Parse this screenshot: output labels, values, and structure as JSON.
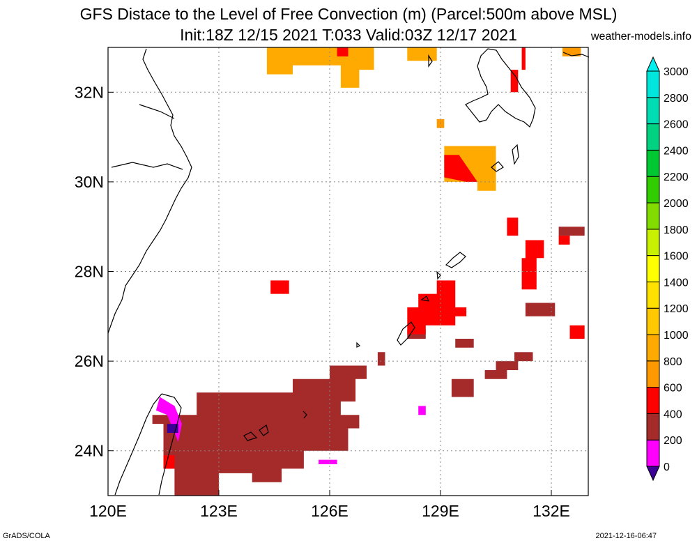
{
  "title_line1": "GFS Distace to the Level of Free Convection (m) (Parcel:500m above MSL)",
  "title_line2": "Init:18Z 12/15 2021 T:033 Valid:03Z 12/17 2021",
  "credit": "weather-models.info",
  "footer_left": "GrADS/COLA",
  "footer_right": "2021-12-16-06:47",
  "map": {
    "lon_range": [
      120,
      133
    ],
    "lat_range": [
      23,
      33
    ],
    "lon_ticks": [
      "120E",
      "123E",
      "126E",
      "129E",
      "132E"
    ],
    "lat_ticks": [
      "24N",
      "26N",
      "28N",
      "30N",
      "32N"
    ]
  },
  "colorbar": {
    "labels": [
      "0",
      "200",
      "400",
      "600",
      "800",
      "1000",
      "1200",
      "1400",
      "1600",
      "1800",
      "2000",
      "2200",
      "2400",
      "2600",
      "2800",
      "3000"
    ],
    "colors": [
      "#3c0096",
      "#ff00ff",
      "#a52a2a",
      "#ff0000",
      "#ff9900",
      "#ffaa00",
      "#ffc800",
      "#ffe100",
      "#ffff00",
      "#c8f000",
      "#82dc00",
      "#32cd00",
      "#00c832",
      "#00d282",
      "#00dcb4",
      "#00e6dc",
      "#00f0f0"
    ]
  },
  "fields": [
    {
      "name": "brown-south",
      "color": "#a52a2a",
      "points": [
        [
          121.2,
          24.8
        ],
        [
          122.4,
          24.8
        ],
        [
          122.4,
          25.3
        ],
        [
          123.3,
          25.3
        ],
        [
          125.0,
          25.3
        ],
        [
          125.0,
          25.6
        ],
        [
          126.0,
          25.6
        ],
        [
          126.0,
          25.9
        ],
        [
          127.0,
          25.9
        ],
        [
          127.0,
          25.6
        ],
        [
          126.7,
          25.6
        ],
        [
          126.7,
          25.1
        ],
        [
          126.3,
          25.1
        ],
        [
          126.3,
          24.8
        ],
        [
          126.8,
          24.8
        ],
        [
          126.8,
          24.5
        ],
        [
          126.5,
          24.5
        ],
        [
          126.5,
          24.0
        ],
        [
          125.3,
          24.0
        ],
        [
          125.3,
          23.6
        ],
        [
          124.7,
          23.6
        ],
        [
          124.7,
          23.3
        ],
        [
          123.9,
          23.3
        ],
        [
          123.9,
          23.5
        ],
        [
          123.0,
          23.5
        ],
        [
          123.0,
          23.0
        ],
        [
          121.8,
          23.0
        ],
        [
          121.8,
          23.6
        ],
        [
          121.5,
          23.6
        ],
        [
          121.5,
          24.6
        ],
        [
          121.2,
          24.6
        ]
      ]
    },
    {
      "name": "red-south-small",
      "color": "#ff0000",
      "points": [
        [
          121.5,
          23.6
        ],
        [
          121.8,
          23.6
        ],
        [
          121.8,
          23.9
        ],
        [
          121.5,
          23.9
        ]
      ]
    },
    {
      "name": "magenta-taiwan",
      "color": "#ff00ff",
      "points": [
        [
          121.4,
          25.2
        ],
        [
          121.8,
          25.0
        ],
        [
          122.0,
          24.6
        ],
        [
          121.9,
          24.2
        ],
        [
          121.6,
          24.8
        ],
        [
          121.3,
          24.9
        ]
      ]
    },
    {
      "name": "purple-taiwan",
      "color": "#3c0096",
      "points": [
        [
          121.6,
          24.6
        ],
        [
          121.9,
          24.6
        ],
        [
          121.9,
          24.4
        ],
        [
          121.6,
          24.4
        ]
      ]
    },
    {
      "name": "magenta-south",
      "color": "#ff00ff",
      "points": [
        [
          125.7,
          23.8
        ],
        [
          126.2,
          23.8
        ],
        [
          126.2,
          23.7
        ],
        [
          125.7,
          23.7
        ]
      ]
    },
    {
      "name": "brown-mid",
      "color": "#a52a2a",
      "points": [
        [
          130.2,
          25.6
        ],
        [
          130.8,
          25.6
        ],
        [
          130.8,
          25.8
        ],
        [
          131.1,
          25.8
        ],
        [
          131.1,
          26.0
        ],
        [
          131.5,
          26.0
        ],
        [
          131.5,
          26.2
        ],
        [
          131.0,
          26.2
        ],
        [
          131.0,
          26.0
        ],
        [
          130.5,
          26.0
        ],
        [
          130.5,
          25.8
        ],
        [
          130.2,
          25.8
        ]
      ]
    },
    {
      "name": "brown-mid2",
      "color": "#a52a2a",
      "points": [
        [
          129.3,
          25.2
        ],
        [
          129.9,
          25.2
        ],
        [
          129.9,
          25.6
        ],
        [
          129.3,
          25.6
        ]
      ]
    },
    {
      "name": "brown-mid3",
      "color": "#a52a2a",
      "points": [
        [
          129.4,
          26.3
        ],
        [
          129.9,
          26.3
        ],
        [
          129.9,
          26.5
        ],
        [
          129.4,
          26.5
        ]
      ]
    },
    {
      "name": "brown-ryukyu",
      "color": "#a52a2a",
      "points": [
        [
          128.1,
          26.5
        ],
        [
          128.6,
          26.5
        ],
        [
          128.6,
          26.7
        ],
        [
          128.1,
          26.7
        ]
      ]
    },
    {
      "name": "red-ryukyu",
      "color": "#ff0000",
      "points": [
        [
          128.6,
          26.8
        ],
        [
          129.4,
          26.8
        ],
        [
          129.4,
          27.0
        ],
        [
          129.7,
          27.0
        ],
        [
          129.7,
          27.2
        ],
        [
          129.4,
          27.2
        ],
        [
          129.4,
          27.8
        ],
        [
          128.9,
          27.8
        ],
        [
          128.9,
          27.5
        ],
        [
          128.4,
          27.5
        ],
        [
          128.4,
          27.2
        ],
        [
          128.1,
          27.2
        ],
        [
          128.1,
          26.6
        ],
        [
          128.6,
          26.6
        ]
      ]
    },
    {
      "name": "red-east-1",
      "color": "#ff0000",
      "points": [
        [
          131.2,
          27.6
        ],
        [
          131.6,
          27.6
        ],
        [
          131.6,
          28.3
        ],
        [
          131.8,
          28.3
        ],
        [
          131.8,
          28.7
        ],
        [
          131.3,
          28.7
        ],
        [
          131.3,
          28.3
        ],
        [
          131.2,
          28.3
        ]
      ]
    },
    {
      "name": "red-east-2",
      "color": "#ff0000",
      "points": [
        [
          130.8,
          28.8
        ],
        [
          131.1,
          28.8
        ],
        [
          131.1,
          29.2
        ],
        [
          130.8,
          29.2
        ]
      ]
    },
    {
      "name": "brown-east",
      "color": "#a52a2a",
      "points": [
        [
          132.2,
          28.8
        ],
        [
          132.9,
          28.8
        ],
        [
          132.9,
          29.0
        ],
        [
          132.2,
          29.0
        ]
      ]
    },
    {
      "name": "red-east-3",
      "color": "#ff0000",
      "points": [
        [
          132.2,
          28.6
        ],
        [
          132.5,
          28.6
        ],
        [
          132.5,
          28.8
        ],
        [
          132.2,
          28.8
        ]
      ]
    },
    {
      "name": "brown-east-2",
      "color": "#a52a2a",
      "points": [
        [
          131.3,
          27.0
        ],
        [
          132.1,
          27.0
        ],
        [
          132.1,
          27.3
        ],
        [
          131.3,
          27.3
        ]
      ]
    },
    {
      "name": "red-east-4",
      "color": "#ff0000",
      "points": [
        [
          132.5,
          26.5
        ],
        [
          132.9,
          26.5
        ],
        [
          132.9,
          26.8
        ],
        [
          132.5,
          26.8
        ]
      ]
    },
    {
      "name": "orange-north-1",
      "color": "#ffaa00",
      "points": [
        [
          124.3,
          32.4
        ],
        [
          125.0,
          32.4
        ],
        [
          125.0,
          32.6
        ],
        [
          126.3,
          32.6
        ],
        [
          126.3,
          32.1
        ],
        [
          126.8,
          32.1
        ],
        [
          126.8,
          32.5
        ],
        [
          127.2,
          32.5
        ],
        [
          127.2,
          33.0
        ],
        [
          124.3,
          33.0
        ]
      ]
    },
    {
      "name": "red-north-1",
      "color": "#ff0000",
      "points": [
        [
          126.2,
          32.8
        ],
        [
          126.5,
          32.8
        ],
        [
          126.5,
          33.0
        ],
        [
          126.2,
          33.0
        ]
      ]
    },
    {
      "name": "orange-north-2",
      "color": "#ffaa00",
      "points": [
        [
          128.1,
          32.7
        ],
        [
          128.9,
          32.7
        ],
        [
          128.9,
          33.0
        ],
        [
          128.1,
          33.0
        ]
      ]
    },
    {
      "name": "orange-north-3",
      "color": "#ff9900",
      "points": [
        [
          132.3,
          32.8
        ],
        [
          132.8,
          32.8
        ],
        [
          132.8,
          33.0
        ],
        [
          132.3,
          33.0
        ]
      ]
    },
    {
      "name": "orange-center",
      "color": "#ff9900",
      "points": [
        [
          128.9,
          31.2
        ],
        [
          129.1,
          31.2
        ],
        [
          129.1,
          31.4
        ],
        [
          128.9,
          31.4
        ]
      ]
    },
    {
      "name": "orange-kyushu",
      "color": "#ffaa00",
      "points": [
        [
          129.1,
          30.0
        ],
        [
          130.0,
          30.0
        ],
        [
          130.0,
          29.8
        ],
        [
          130.5,
          29.8
        ],
        [
          130.5,
          30.8
        ],
        [
          129.1,
          30.8
        ]
      ]
    },
    {
      "name": "red-kyushu",
      "color": "#ff0000",
      "points": [
        [
          129.1,
          30.6
        ],
        [
          129.5,
          30.6
        ],
        [
          130.0,
          30.0
        ],
        [
          129.7,
          30.0
        ],
        [
          129.1,
          30.1
        ]
      ]
    },
    {
      "name": "red-north-2",
      "color": "#ff0000",
      "points": [
        [
          131.2,
          32.5
        ],
        [
          131.3,
          32.5
        ],
        [
          131.3,
          33.0
        ],
        [
          131.2,
          33.0
        ]
      ]
    },
    {
      "name": "red-north-3",
      "color": "#ff0000",
      "points": [
        [
          130.9,
          32.0
        ],
        [
          131.1,
          32.0
        ],
        [
          131.1,
          32.5
        ],
        [
          130.9,
          32.5
        ]
      ]
    },
    {
      "name": "red-misc-1",
      "color": "#ff0000",
      "points": [
        [
          124.4,
          27.5
        ],
        [
          124.9,
          27.5
        ],
        [
          124.9,
          27.8
        ],
        [
          124.4,
          27.8
        ]
      ]
    },
    {
      "name": "brown-misc-1",
      "color": "#a52a2a",
      "points": [
        [
          127.3,
          25.9
        ],
        [
          127.5,
          25.9
        ],
        [
          127.5,
          26.2
        ],
        [
          127.3,
          26.2
        ]
      ]
    },
    {
      "name": "magenta-misc",
      "color": "#ff00ff",
      "points": [
        [
          128.4,
          24.8
        ],
        [
          128.6,
          24.8
        ],
        [
          128.6,
          25.0
        ],
        [
          128.4,
          25.0
        ]
      ]
    }
  ]
}
